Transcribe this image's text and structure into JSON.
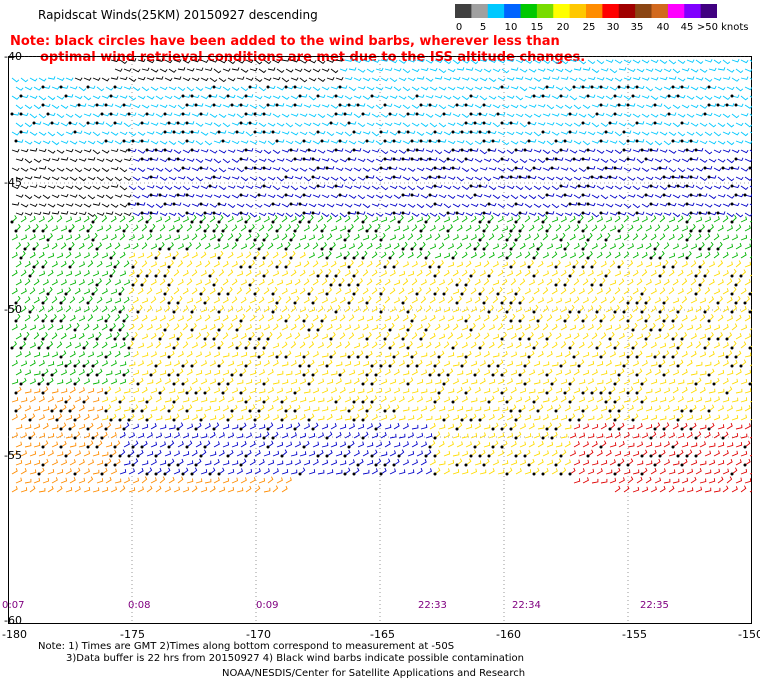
{
  "title": "Rapidscat Winds(25KM) 20150927 descending",
  "note_lines": [
    "Note: black circles have been added to the wind barbs, wherever less than",
    "optimal wind retrieval conditions are met due to the ISS altitude changes."
  ],
  "colorbar": {
    "labels": [
      "0",
      "5",
      "10",
      "15",
      "20",
      "25",
      "30",
      "35",
      "40",
      "45",
      ">50 knots"
    ],
    "colors": [
      "#404040",
      "#a0a0a0",
      "#00c8ff",
      "#0064ff",
      "#00c800",
      "#78dc00",
      "#ffff00",
      "#ffc800",
      "#ff8c00",
      "#ff0000",
      "#a00000",
      "#8b4513",
      "#d2691e",
      "#ff00ff",
      "#8000ff",
      "#400080"
    ]
  },
  "map": {
    "lon_labels": [
      "-180",
      "-175",
      "-170",
      "-165",
      "-160",
      "-155",
      "-150"
    ],
    "lat_labels": [
      "-40",
      "-45",
      "-50",
      "-55",
      "-60"
    ],
    "time_labels": [
      "0:07",
      "0:08",
      "0:09",
      "22:33",
      "22:34",
      "22:35"
    ],
    "background": "#ffffff",
    "speed_band_colors": {
      "calm_black": "#000000",
      "light_cyan": "#00c8ff",
      "moderate_blue": "#0000c8",
      "green": "#00b400",
      "yellow": "#ffdc00",
      "orange": "#ff8c00",
      "red": "#e00000"
    }
  },
  "footnote_lines": [
    "Note: 1) Times are GMT 2)Times along bottom correspond to measurement at -50S",
    "3)Data buffer is 22 hrs from 20150927 4) Black wind barbs indicate possible contamination"
  ],
  "credit": "NOAA/NESDIS/Center for Satellite Applications and Research"
}
